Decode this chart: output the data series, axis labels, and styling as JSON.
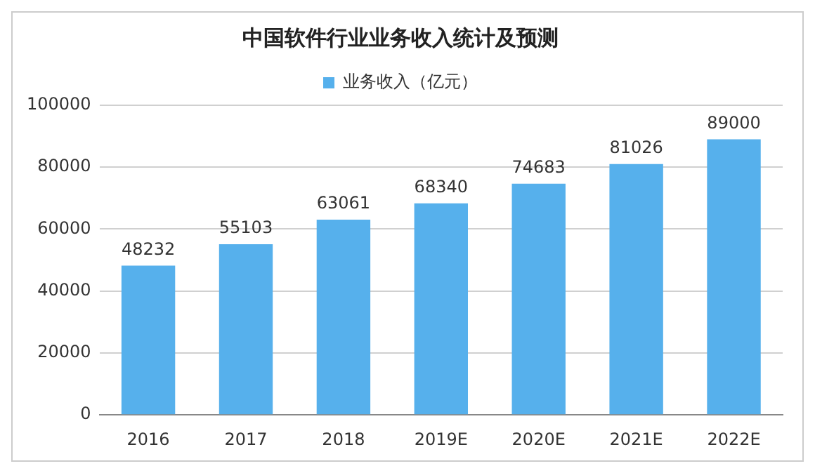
{
  "chart_data": {
    "type": "bar",
    "title": "中国软件行业业务收入统计及预测",
    "categories": [
      "2016",
      "2017",
      "2018",
      "2019E",
      "2020E",
      "2021E",
      "2022E"
    ],
    "series": [
      {
        "name": "业务收入（亿元）",
        "color": "#56b0ec",
        "values": [
          48232,
          55103,
          63061,
          68340,
          74683,
          81026,
          89000
        ]
      }
    ],
    "ylim": [
      0,
      100000
    ],
    "yticks": [
      0,
      20000,
      40000,
      60000,
      80000,
      100000
    ],
    "grid": "y",
    "legend": "top",
    "data_labels": true
  }
}
